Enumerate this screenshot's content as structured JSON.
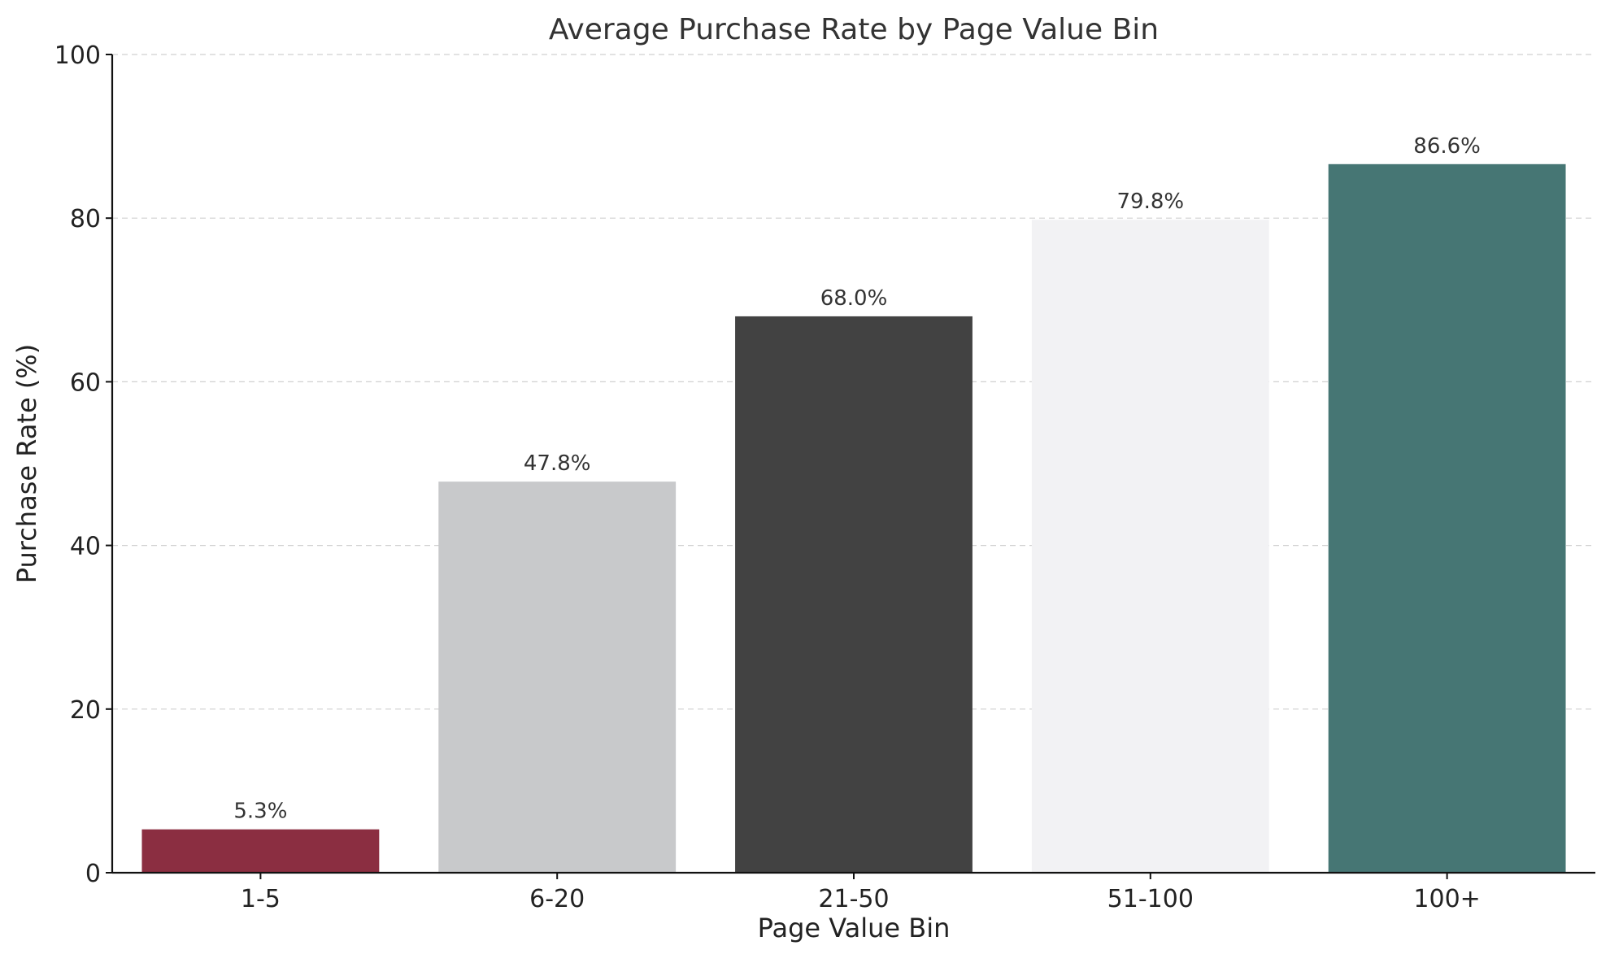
{
  "chart_data": {
    "type": "bar",
    "title": "Average Purchase Rate by Page Value Bin",
    "xlabel": "Page Value Bin",
    "ylabel": "Purchase Rate (%)",
    "categories": [
      "1-5",
      "6-20",
      "21-50",
      "51-100",
      "100+"
    ],
    "values": [
      5.3,
      47.8,
      68.0,
      79.8,
      86.6
    ],
    "data_labels": [
      "5.3%",
      "47.8%",
      "68.0%",
      "79.8%",
      "86.6%"
    ],
    "colors": [
      "#8b2e41",
      "#c8c9cb",
      "#424242",
      "#f2f2f4",
      "#467674"
    ],
    "ylim": [
      0,
      100
    ],
    "yticks": [
      0,
      20,
      40,
      60,
      80,
      100
    ],
    "ytick_labels": [
      "0",
      "20",
      "40",
      "60",
      "80",
      "100"
    ],
    "grid": true,
    "legend": "none"
  }
}
